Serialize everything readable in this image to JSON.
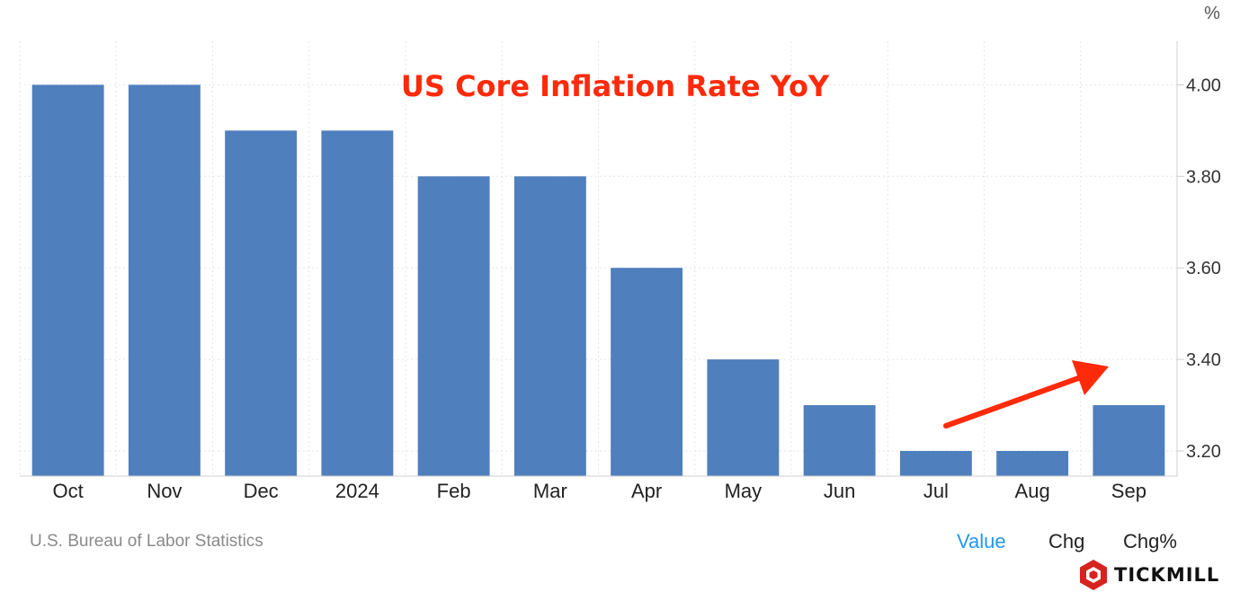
{
  "chart_data": {
    "type": "bar",
    "title": "US Core Inflation Rate YoY",
    "unit": "%",
    "categories": [
      "Oct",
      "Nov",
      "Dec",
      "2024",
      "Feb",
      "Mar",
      "Apr",
      "May",
      "Jun",
      "Jul",
      "Aug",
      "Sep"
    ],
    "values": [
      4.0,
      4.0,
      3.9,
      3.9,
      3.8,
      3.8,
      3.6,
      3.4,
      3.3,
      3.2,
      3.2,
      3.3
    ],
    "yticks": [
      "3.20",
      "3.40",
      "3.60",
      "3.80",
      "4.00"
    ],
    "ylim": [
      3.145,
      4.095
    ],
    "grid": true,
    "bar_color": "#4f7fbd",
    "title_color": "#ff2a0a",
    "annotation": {
      "type": "arrow",
      "color": "#ff2a0a",
      "meaning": "rising from Jul to Sep"
    }
  },
  "footer": {
    "source": "U.S. Bureau of Labor Statistics",
    "toggles": [
      "Value",
      "Chg",
      "Chg%"
    ],
    "active_toggle": "Value",
    "active_color": "#2196f3"
  },
  "brand": {
    "name": "TICKMILL",
    "color": "#d6231f"
  }
}
